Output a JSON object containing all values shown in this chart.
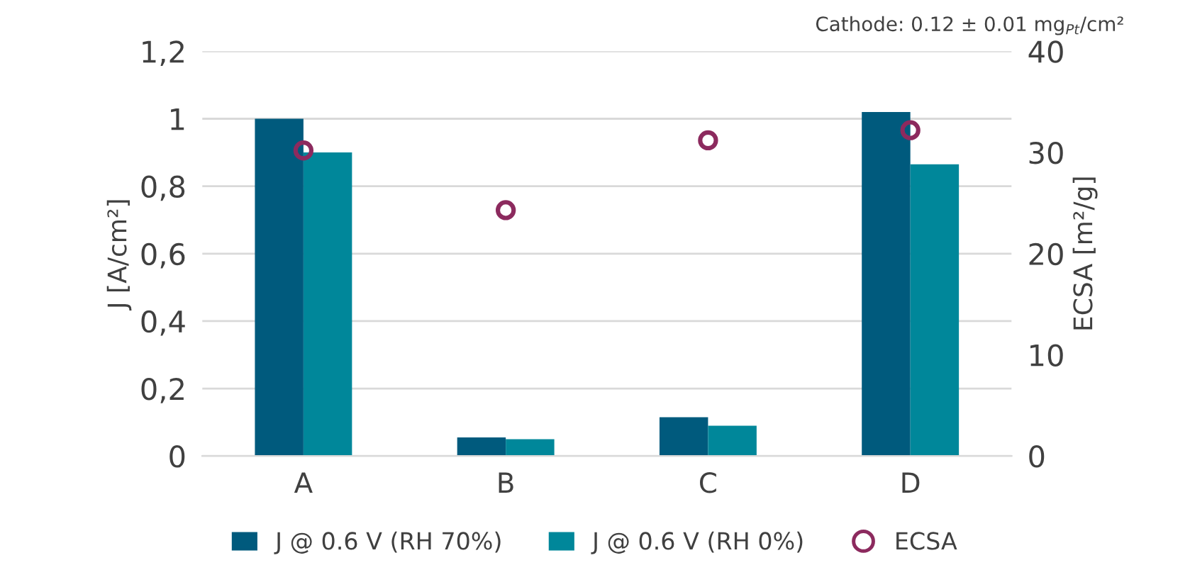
{
  "chart_data": {
    "type": "bar",
    "annotations": [
      "Cathode: 0.12 ± 0.01 mg$_{Pt}$/cm²"
    ],
    "categories": [
      "A",
      "B",
      "C",
      "D"
    ],
    "ylabel": "J [A/cm²]",
    "y2label": "ECSA [m²/g]",
    "series": [
      {
        "name": "J @ 0.6 V (RH 70%)",
        "color": "#005a7d",
        "values": [
          1.0,
          0.055,
          0.115,
          1.02
        ]
      },
      {
        "name": "J @ 0.6 V (RH 0%)",
        "color": "#00879a",
        "values": [
          0.9,
          0.05,
          0.09,
          0.865
        ]
      },
      {
        "name": "ECSA",
        "type": "scatter",
        "axis": "y2",
        "color": "#8c2a5e",
        "marker": "circle",
        "values": [
          30.2,
          24.3,
          31.2,
          32.2
        ]
      }
    ],
    "ylim": [
      0,
      1.2
    ],
    "yticks": [
      0,
      {
        "value": 0.2,
        "label": "0,2"
      },
      {
        "value": 0.4,
        "label": "0,4"
      },
      {
        "value": 0.6,
        "label": "0,6"
      },
      {
        "value": 0.8,
        "label": "0,8"
      },
      1,
      {
        "value": 1.2,
        "label": "1,2"
      }
    ],
    "y2lim": [
      0,
      40
    ],
    "y2ticks": [
      0,
      10,
      20,
      30,
      40
    ],
    "grid": "y",
    "legend": "bottom"
  }
}
